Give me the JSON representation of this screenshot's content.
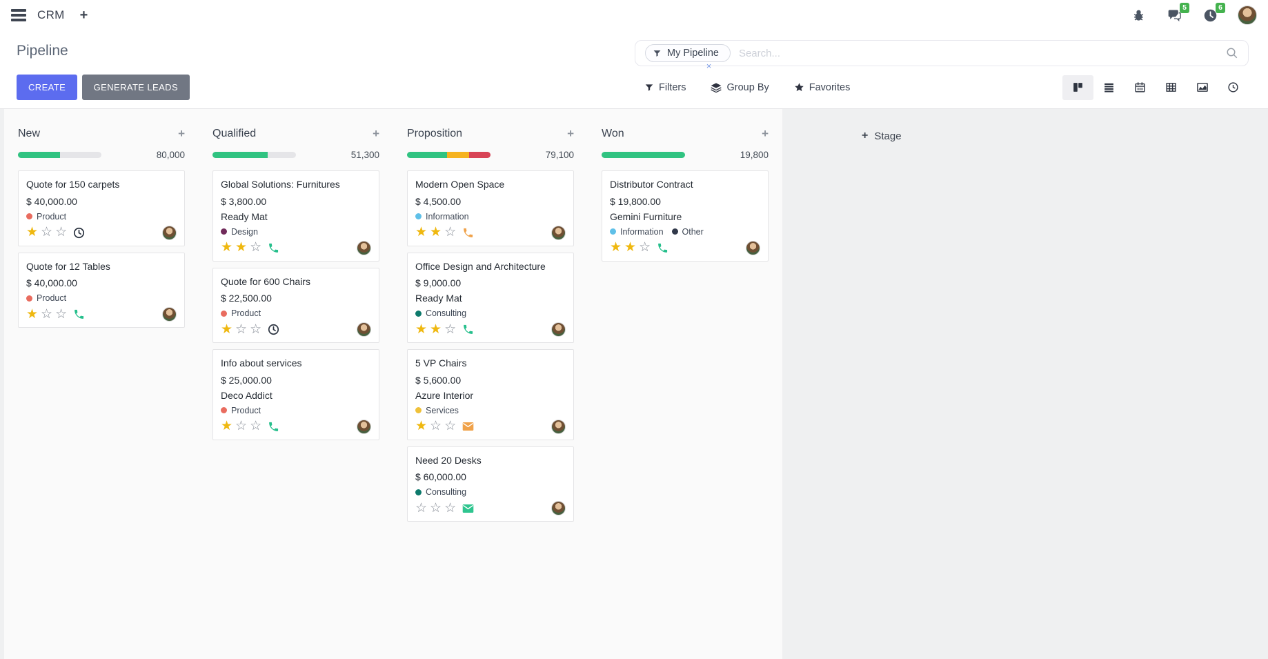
{
  "icons": {
    "plus": "+",
    "close": "×"
  },
  "colors": {
    "green": "#30c381",
    "amber": "#f6b31f",
    "red": "#d84356",
    "product": "#e96c5f",
    "design": "#712b5b",
    "information": "#5fc0e8",
    "consulting": "#0d7a6c",
    "services": "#efc13a",
    "other": "#31394a",
    "star": "#efb810",
    "clock": "#2b3340",
    "phone_green": "#26bf8c",
    "phone_orange": "#f0a24a",
    "mail_orange": "#f0a24a",
    "mail_green": "#2ec58f",
    "accent": "#5c6cef",
    "muted_button": "#717783",
    "badge": "#44b24e"
  },
  "navbar": {
    "app_name": "CRM",
    "messages_badge": "5",
    "activities_badge": "6"
  },
  "control_panel": {
    "title": "Pipeline",
    "create_label": "CREATE",
    "generate_leads_label": "GENERATE LEADS",
    "search": {
      "facet": "My Pipeline",
      "placeholder": "Search..."
    },
    "menus": [
      {
        "label": "Filters",
        "icon": "filter-icon"
      },
      {
        "label": "Group By",
        "icon": "layers-icon"
      },
      {
        "label": "Favorites",
        "icon": "star-icon"
      }
    ],
    "view_switcher": [
      "kanban-icon",
      "list-icon",
      "calendar-icon",
      "pivot-icon",
      "graph-icon",
      "activity-clock-icon"
    ]
  },
  "kanban": {
    "add_stage_label": "Stage",
    "columns": [
      {
        "name": "New",
        "total": "80,000",
        "progress": [
          {
            "color": "green",
            "pct": 50
          }
        ],
        "cards": [
          {
            "title": "Quote for 150 carpets",
            "amount": "$ 40,000.00",
            "tags": [
              {
                "label": "Product",
                "color": "product"
              }
            ],
            "stars": 1,
            "activity": {
              "icon": "clock-icon",
              "color": "clock"
            }
          },
          {
            "title": "Quote for 12 Tables",
            "amount": "$ 40,000.00",
            "tags": [
              {
                "label": "Product",
                "color": "product"
              }
            ],
            "stars": 1,
            "activity": {
              "icon": "phone-icon",
              "color": "phone_green"
            }
          }
        ]
      },
      {
        "name": "Qualified",
        "total": "51,300",
        "progress": [
          {
            "color": "green",
            "pct": 66
          }
        ],
        "cards": [
          {
            "title": "Global Solutions: Furnitures",
            "amount": "$ 3,800.00",
            "partner": "Ready Mat",
            "tags": [
              {
                "label": "Design",
                "color": "design"
              }
            ],
            "stars": 2,
            "activity": {
              "icon": "phone-icon",
              "color": "phone_green"
            }
          },
          {
            "title": "Quote for 600 Chairs",
            "amount": "$ 22,500.00",
            "tags": [
              {
                "label": "Product",
                "color": "product"
              }
            ],
            "stars": 1,
            "activity": {
              "icon": "clock-icon",
              "color": "clock"
            }
          },
          {
            "title": "Info about services",
            "amount": "$ 25,000.00",
            "partner": "Deco Addict",
            "tags": [
              {
                "label": "Product",
                "color": "product"
              }
            ],
            "stars": 1,
            "activity": {
              "icon": "phone-icon",
              "color": "phone_green"
            }
          }
        ]
      },
      {
        "name": "Proposition",
        "total": "79,100",
        "progress": [
          {
            "color": "green",
            "pct": 48
          },
          {
            "color": "amber",
            "pct": 26
          },
          {
            "color": "red",
            "pct": 26
          }
        ],
        "cards": [
          {
            "title": "Modern Open Space",
            "amount": "$ 4,500.00",
            "tags": [
              {
                "label": "Information",
                "color": "information"
              }
            ],
            "stars": 2,
            "activity": {
              "icon": "phone-icon",
              "color": "phone_orange"
            }
          },
          {
            "title": "Office Design and Architecture",
            "amount": "$ 9,000.00",
            "partner": "Ready Mat",
            "tags": [
              {
                "label": "Consulting",
                "color": "consulting"
              }
            ],
            "stars": 2,
            "activity": {
              "icon": "phone-icon",
              "color": "phone_green"
            }
          },
          {
            "title": "5 VP Chairs",
            "amount": "$ 5,600.00",
            "partner": "Azure Interior",
            "tags": [
              {
                "label": "Services",
                "color": "services"
              }
            ],
            "stars": 1,
            "activity": {
              "icon": "mail-icon",
              "color": "mail_orange"
            }
          },
          {
            "title": "Need 20 Desks",
            "amount": "$ 60,000.00",
            "tags": [
              {
                "label": "Consulting",
                "color": "consulting"
              }
            ],
            "stars": 0,
            "activity": {
              "icon": "mail-icon",
              "color": "mail_green"
            }
          }
        ]
      },
      {
        "name": "Won",
        "total": "19,800",
        "progress": [
          {
            "color": "green",
            "pct": 100
          }
        ],
        "cards": [
          {
            "title": "Distributor Contract",
            "amount": "$ 19,800.00",
            "partner": "Gemini Furniture",
            "tags": [
              {
                "label": "Information",
                "color": "information"
              },
              {
                "label": "Other",
                "color": "other"
              }
            ],
            "stars": 2,
            "activity": {
              "icon": "phone-icon",
              "color": "phone_green"
            }
          }
        ]
      }
    ]
  }
}
